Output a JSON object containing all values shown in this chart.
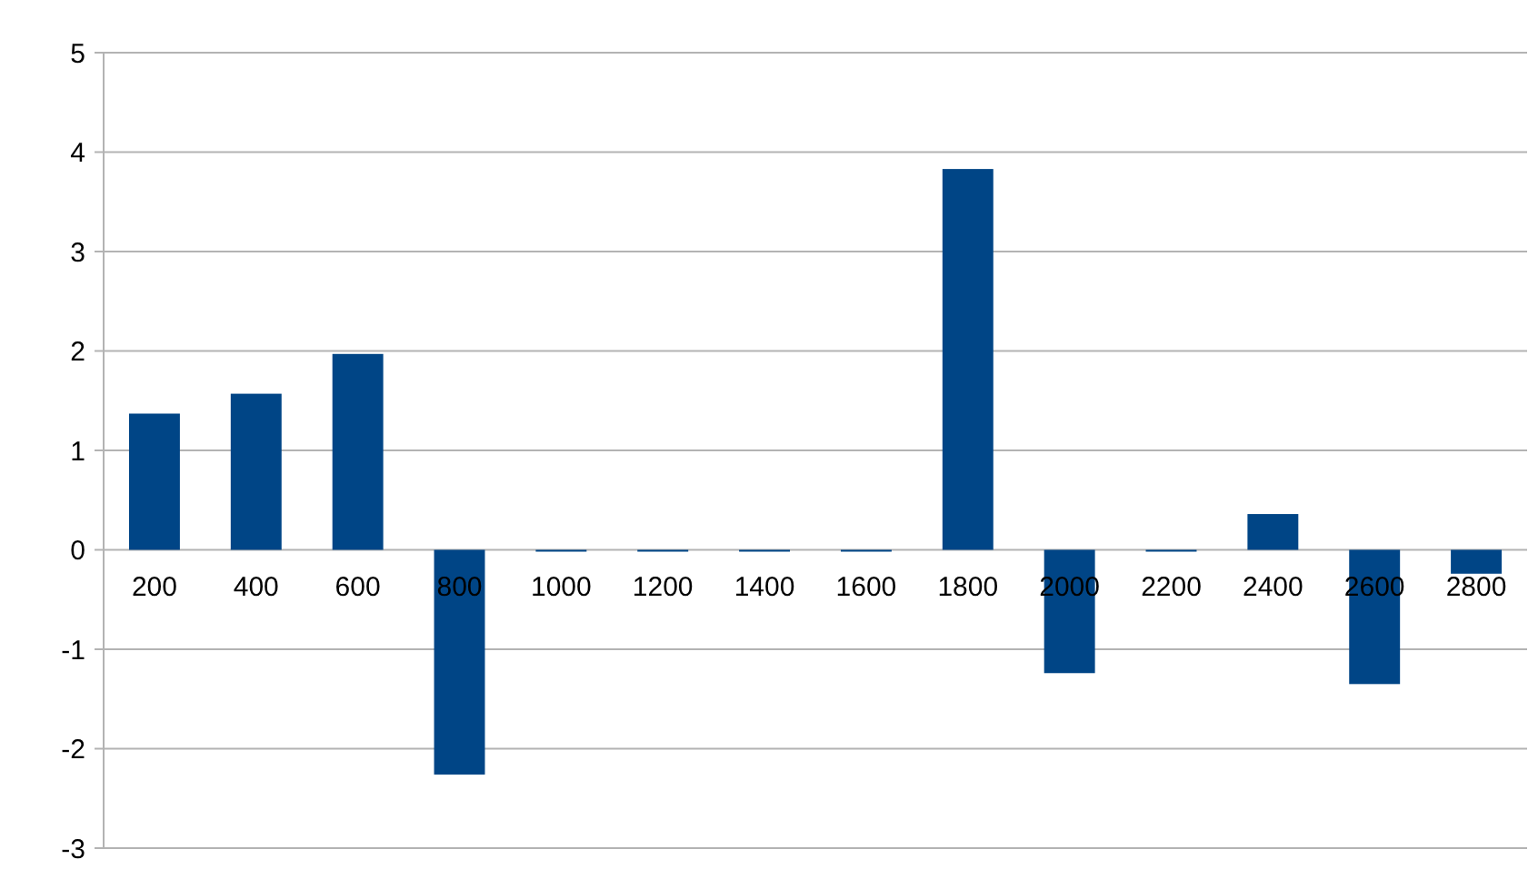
{
  "chart_data": {
    "type": "bar",
    "categories": [
      "200",
      "400",
      "600",
      "800",
      "1000",
      "1200",
      "1400",
      "1600",
      "1800",
      "2000",
      "2200",
      "2400",
      "2600",
      "2800"
    ],
    "values": [
      1.37,
      1.57,
      1.97,
      -2.26,
      0,
      0,
      0,
      0,
      3.83,
      -1.24,
      -0.01,
      0.36,
      -1.35,
      -0.24
    ],
    "color": "#004586",
    "ylim": [
      -3,
      5
    ],
    "yticks": [
      -3,
      -2,
      -1,
      0,
      1,
      2,
      3,
      4,
      5
    ],
    "grid": "y"
  }
}
